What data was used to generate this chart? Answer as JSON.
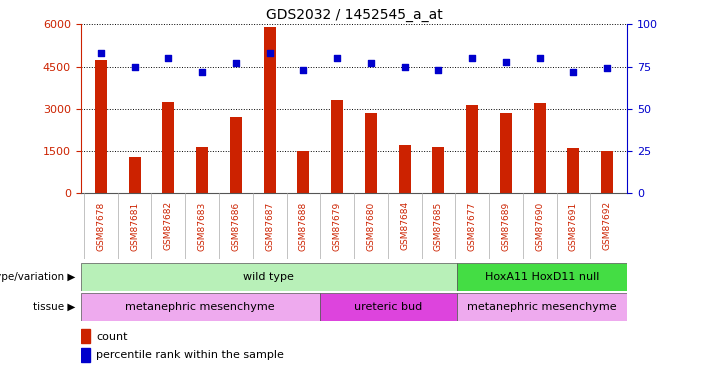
{
  "title": "GDS2032 / 1452545_a_at",
  "samples": [
    "GSM87678",
    "GSM87681",
    "GSM87682",
    "GSM87683",
    "GSM87686",
    "GSM87687",
    "GSM87688",
    "GSM87679",
    "GSM87680",
    "GSM87684",
    "GSM87685",
    "GSM87677",
    "GSM87689",
    "GSM87690",
    "GSM87691",
    "GSM87692"
  ],
  "counts": [
    4750,
    1300,
    3250,
    1650,
    2700,
    5900,
    1500,
    3300,
    2850,
    1700,
    1650,
    3150,
    2850,
    3200,
    1600,
    1500
  ],
  "percentiles": [
    83,
    75,
    80,
    72,
    77,
    83,
    73,
    80,
    77,
    75,
    73,
    80,
    78,
    80,
    72,
    74
  ],
  "ylim_left": [
    0,
    6000
  ],
  "ylim_right": [
    0,
    100
  ],
  "yticks_left": [
    0,
    1500,
    3000,
    4500,
    6000
  ],
  "yticks_right": [
    0,
    25,
    50,
    75,
    100
  ],
  "bar_color": "#cc2200",
  "dot_color": "#0000cc",
  "genotype_groups": [
    {
      "label": "wild type",
      "start": 0,
      "end": 11,
      "color": "#b8f0b8"
    },
    {
      "label": "HoxA11 HoxD11 null",
      "start": 11,
      "end": 16,
      "color": "#44dd44"
    }
  ],
  "tissue_groups": [
    {
      "label": "metanephric mesenchyme",
      "start": 0,
      "end": 7,
      "color": "#eeaaee"
    },
    {
      "label": "ureteric bud",
      "start": 7,
      "end": 11,
      "color": "#dd44dd"
    },
    {
      "label": "metanephric mesenchyme",
      "start": 11,
      "end": 16,
      "color": "#eeaaee"
    }
  ],
  "legend_count_color": "#cc2200",
  "legend_pct_color": "#0000cc",
  "background_color": "#ffffff",
  "grid_color": "#000000",
  "tick_label_color_left": "#cc2200",
  "tick_label_color_right": "#0000cc",
  "xtick_color": "#cc2200",
  "xtick_bg": "#dddddd"
}
